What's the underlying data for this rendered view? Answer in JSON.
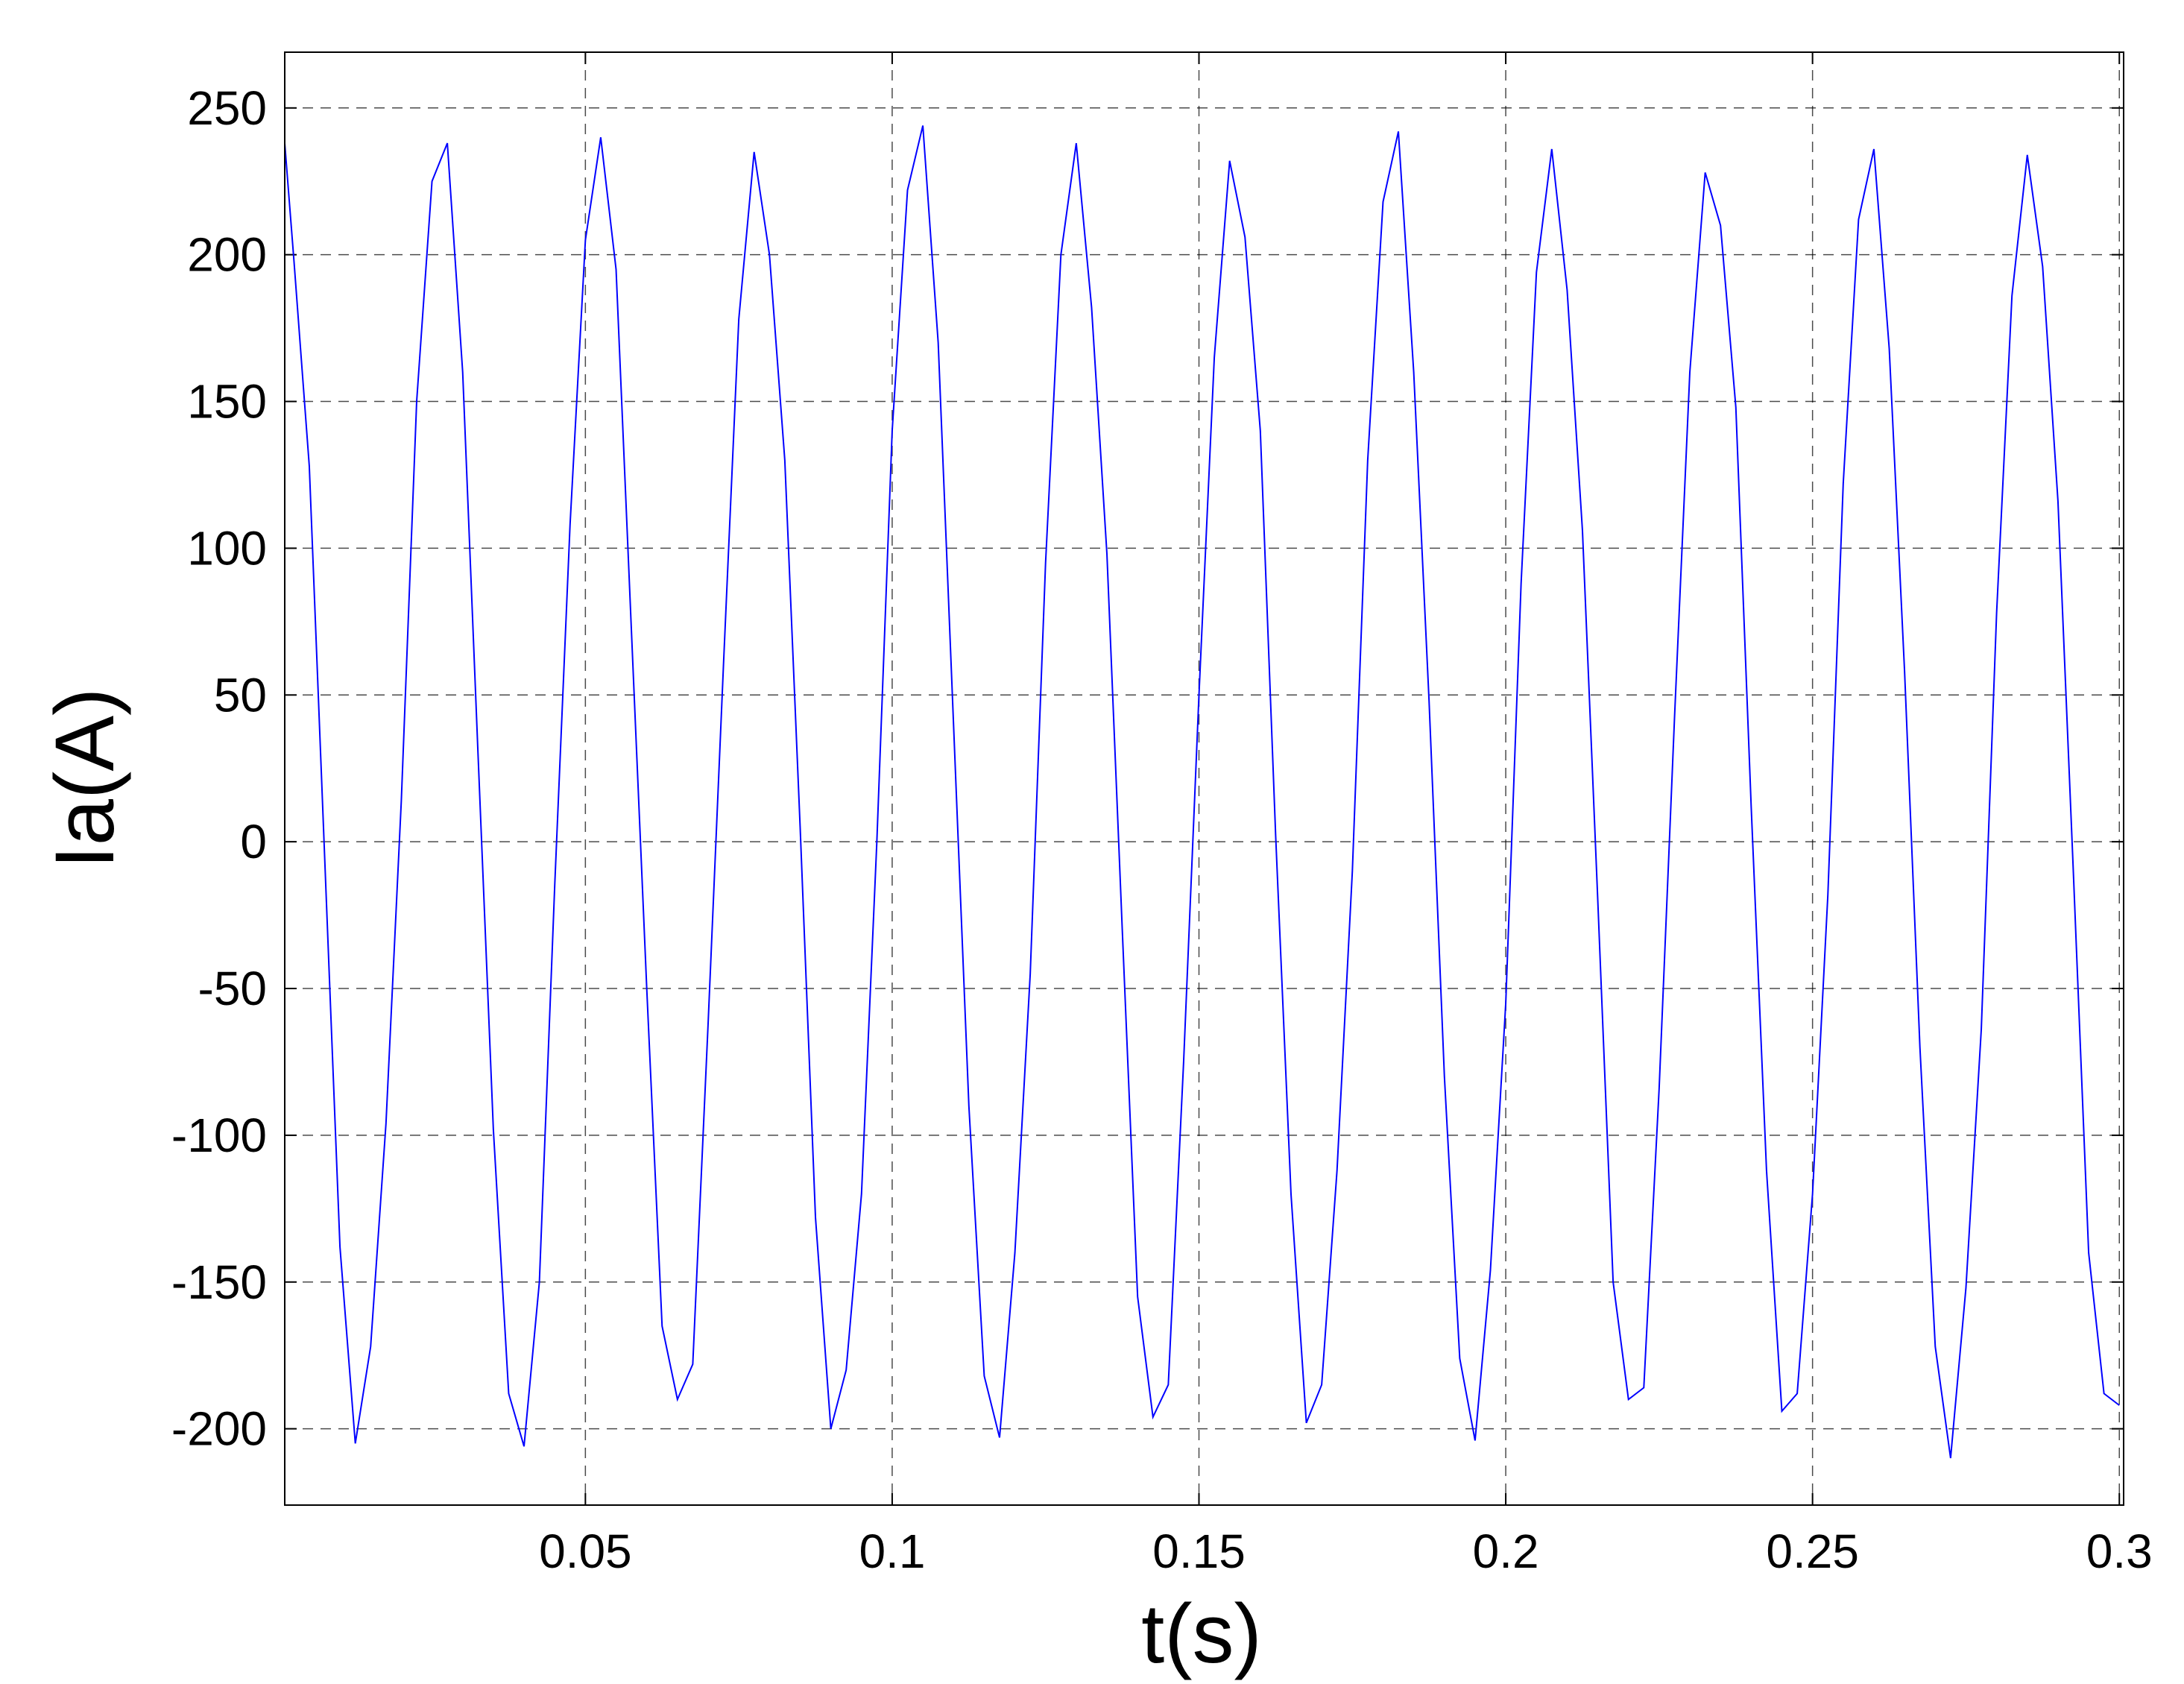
{
  "chart_data": {
    "type": "line",
    "xlabel": "t(s)",
    "ylabel": "Ia(A)",
    "x": [
      0.001,
      0.0025,
      0.005,
      0.0075,
      0.01,
      0.0125,
      0.015,
      0.0175,
      0.02,
      0.0225,
      0.025,
      0.0275,
      0.03,
      0.0325,
      0.035,
      0.0375,
      0.04,
      0.0425,
      0.045,
      0.0475,
      0.05,
      0.0525,
      0.055,
      0.0575,
      0.06,
      0.0625,
      0.065,
      0.0675,
      0.07,
      0.0725,
      0.075,
      0.0775,
      0.08,
      0.0825,
      0.085,
      0.0875,
      0.09,
      0.0925,
      0.095,
      0.0975,
      0.1,
      0.1025,
      0.105,
      0.1075,
      0.11,
      0.1125,
      0.115,
      0.1175,
      0.12,
      0.1225,
      0.125,
      0.1275,
      0.13,
      0.1325,
      0.135,
      0.1375,
      0.14,
      0.1425,
      0.145,
      0.1475,
      0.15,
      0.1525,
      0.155,
      0.1575,
      0.16,
      0.1625,
      0.165,
      0.1675,
      0.17,
      0.1725,
      0.175,
      0.1775,
      0.18,
      0.1825,
      0.185,
      0.1875,
      0.19,
      0.1925,
      0.195,
      0.1975,
      0.2,
      0.2025,
      0.205,
      0.2075,
      0.21,
      0.2125,
      0.215,
      0.2175,
      0.22,
      0.2225,
      0.225,
      0.2275,
      0.23,
      0.2325,
      0.235,
      0.2375,
      0.24,
      0.2425,
      0.245,
      0.2475,
      0.25,
      0.2525,
      0.255,
      0.2575,
      0.26,
      0.2625,
      0.265,
      0.2675,
      0.27,
      0.2725,
      0.275,
      0.2775,
      0.28,
      0.2825,
      0.285,
      0.2875,
      0.29,
      0.2925,
      0.295,
      0.2975,
      0.3
    ],
    "values": [
      238,
      198,
      128,
      -5,
      -138,
      -205,
      -172,
      -96,
      14,
      150,
      225,
      238,
      160,
      30,
      -98,
      -188,
      -206,
      -150,
      -15,
      108,
      205,
      240,
      195,
      72,
      -50,
      -165,
      -190,
      -178,
      -62,
      60,
      178,
      235,
      200,
      130,
      5,
      -128,
      -200,
      -180,
      -120,
      0,
      140,
      222,
      244,
      170,
      40,
      -90,
      -182,
      -203,
      -140,
      -45,
      95,
      200,
      238,
      182,
      98,
      -30,
      -155,
      -196,
      -185,
      -75,
      50,
      165,
      232,
      206,
      140,
      2,
      -120,
      -198,
      -185,
      -112,
      -10,
      130,
      218,
      242,
      160,
      48,
      -80,
      -176,
      -204,
      -146,
      -55,
      88,
      194,
      236,
      188,
      106,
      -20,
      -150,
      -190,
      -186,
      -84,
      42,
      160,
      228,
      210,
      148,
      12,
      -112,
      -194,
      -188,
      -120,
      -18,
      122,
      212,
      236,
      168,
      58,
      -70,
      -172,
      -210,
      -152,
      -64,
      78,
      186,
      234,
      196,
      116,
      -10,
      -140,
      -188,
      -192
    ],
    "color": "#0000ff",
    "xlim": [
      0.001,
      0.3007
    ],
    "ylim": [
      -226,
      269
    ],
    "xticks": [
      0.05,
      0.1,
      0.15,
      0.2,
      0.25,
      0.3
    ],
    "yticks": [
      -200,
      -150,
      -100,
      -50,
      0,
      50,
      100,
      150,
      200,
      250
    ],
    "grid": true
  }
}
